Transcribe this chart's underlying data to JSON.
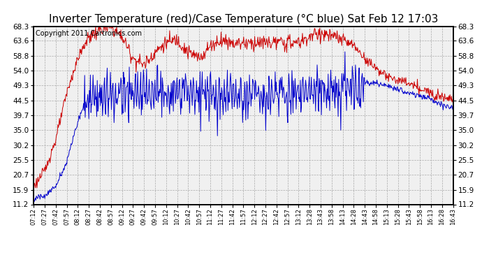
{
  "title": "Inverter Temperature (red)/Case Temperature (°C blue) Sat Feb 12 17:03",
  "copyright": "Copyright 2011 Cartronics.com",
  "yticks": [
    11.2,
    15.9,
    20.7,
    25.5,
    30.2,
    35.0,
    39.7,
    44.5,
    49.3,
    54.0,
    58.8,
    63.6,
    68.3
  ],
  "ymin": 11.2,
  "ymax": 68.3,
  "bg_color": "#ffffff",
  "plot_bg_color": "#f0f0f0",
  "grid_color": "#aaaaaa",
  "red_color": "#cc0000",
  "blue_color": "#0000cc",
  "title_fontsize": 11,
  "copyright_fontsize": 7,
  "xtick_labels": [
    "07:12",
    "07:27",
    "07:42",
    "07:57",
    "08:12",
    "08:27",
    "08:42",
    "08:57",
    "09:12",
    "09:27",
    "09:42",
    "09:57",
    "10:12",
    "10:27",
    "10:42",
    "10:57",
    "11:12",
    "11:27",
    "11:42",
    "11:57",
    "12:12",
    "12:27",
    "12:42",
    "12:57",
    "13:12",
    "13:28",
    "13:43",
    "13:58",
    "14:13",
    "14:28",
    "14:43",
    "14:58",
    "15:13",
    "15:28",
    "15:43",
    "15:58",
    "16:13",
    "16:28",
    "16:43"
  ]
}
